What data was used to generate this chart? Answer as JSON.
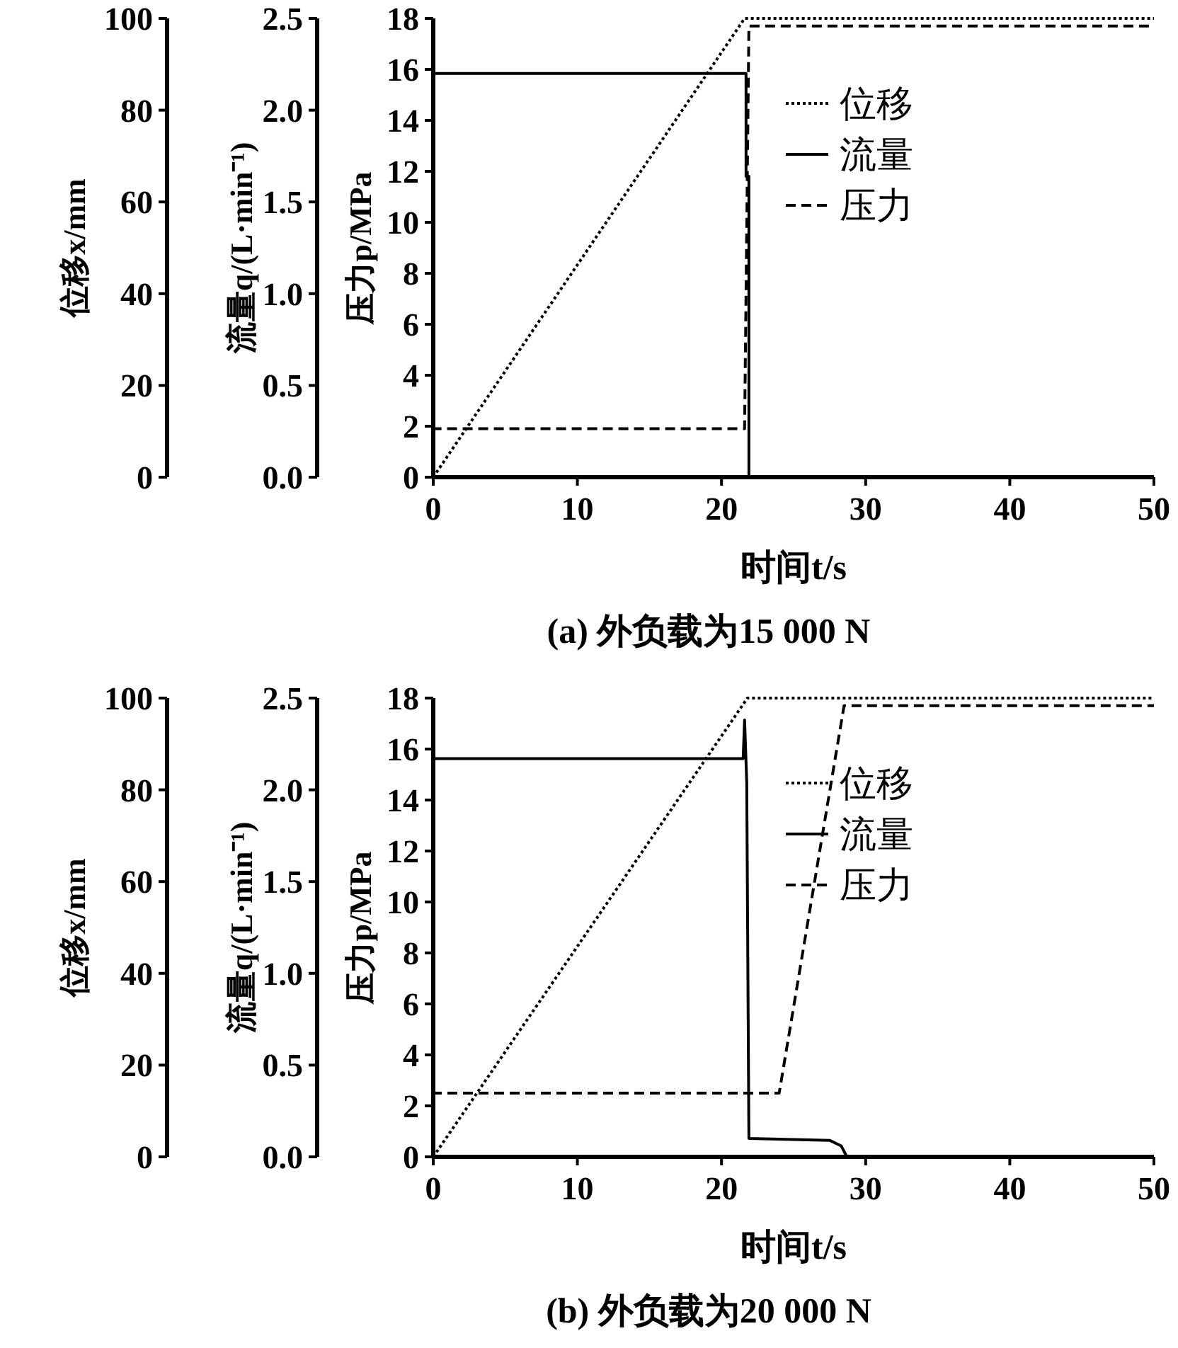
{
  "chart_data": [
    {
      "type": "line",
      "title": "(a) 外负载为15 000 N",
      "xlabel": "时间t/s",
      "ylabel": "压力p/MPa",
      "y2label": "流量q/(L·min⁻¹)",
      "y3label": "位移x/mm",
      "xlim": [
        0,
        50
      ],
      "xticks": [
        0,
        10,
        20,
        30,
        40,
        50
      ],
      "ylim": [
        0,
        18
      ],
      "yticks": [
        0,
        2,
        4,
        6,
        8,
        10,
        12,
        14,
        16,
        18
      ],
      "y2lim": [
        0,
        2.5
      ],
      "y2ticks": [
        {
          "value": 0,
          "label": "0.0"
        },
        0.5,
        {
          "value": 1,
          "label": "1.0"
        },
        1.5,
        {
          "value": 2,
          "label": "2.0"
        },
        2.5
      ],
      "y3lim": [
        0,
        100
      ],
      "y3ticks": [
        0,
        20,
        40,
        60,
        80,
        100
      ],
      "legend": "top right",
      "series": [
        {
          "name": "位移",
          "color": "#000000",
          "line_style": "dotted",
          "axis": "y3",
          "x": [
            0,
            21.6,
            50
          ],
          "values": [
            0,
            100,
            100
          ]
        },
        {
          "name": "流量",
          "color": "#000000",
          "line_style": "solid",
          "axis": "y2",
          "x": [
            0,
            21.7,
            21.7,
            21.9,
            21.9,
            50
          ],
          "values": [
            2.2,
            2.2,
            1.64,
            1.64,
            0,
            0
          ]
        },
        {
          "name": "压力",
          "color": "#000000",
          "line_style": "dashed",
          "x": [
            0,
            0,
            21.6,
            21.9,
            50
          ],
          "values": [
            0,
            1.9,
            1.9,
            17.7,
            17.7
          ]
        }
      ]
    },
    {
      "type": "line",
      "title": "(b) 外负载为20 000 N",
      "xlabel": "时间t/s",
      "ylabel": "压力p/MPa",
      "y2label": "流量q/(L·min⁻¹)",
      "y3label": "位移x/mm",
      "xlim": [
        0,
        50
      ],
      "xticks": [
        0,
        10,
        20,
        30,
        40,
        50
      ],
      "ylim": [
        0,
        18
      ],
      "yticks": [
        0,
        2,
        4,
        6,
        8,
        10,
        12,
        14,
        16,
        18
      ],
      "y2lim": [
        0,
        2.5
      ],
      "y2ticks": [
        {
          "value": 0,
          "label": "0.0"
        },
        0.5,
        {
          "value": 1,
          "label": "1.0"
        },
        1.5,
        {
          "value": 2,
          "label": "2.0"
        },
        2.5
      ],
      "y3lim": [
        0,
        100
      ],
      "y3ticks": [
        0,
        20,
        40,
        60,
        80,
        100
      ],
      "legend": "top right",
      "series": [
        {
          "name": "位移",
          "color": "#000000",
          "line_style": "dotted",
          "axis": "y3",
          "x": [
            0,
            21.8,
            50
          ],
          "values": [
            0,
            100,
            100
          ]
        },
        {
          "name": "流量",
          "color": "#000000",
          "line_style": "solid",
          "axis": "y2",
          "x": [
            0,
            21.5,
            21.6,
            21.75,
            21.9,
            27.5,
            28.3,
            28.7,
            50
          ],
          "values": [
            2.17,
            2.17,
            2.38,
            2.04,
            0.1,
            0.09,
            0.06,
            0,
            0
          ]
        },
        {
          "name": "压力",
          "color": "#000000",
          "line_style": "dashed",
          "x": [
            0,
            0,
            24,
            28.5,
            50
          ],
          "values": [
            0,
            2.5,
            2.5,
            17.7,
            17.7
          ]
        }
      ]
    }
  ]
}
